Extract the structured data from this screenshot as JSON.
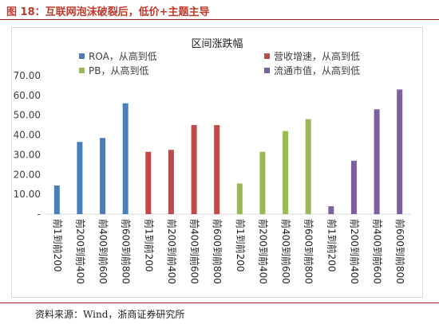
{
  "figure": {
    "title": "图 18：互联网泡沫破裂后，低价+主题主导",
    "source": "资料来源：Wind，浙商证券研究所"
  },
  "colors": {
    "title": "#c0392b",
    "rule": "#a61b1b",
    "roa": "#4a7ebb",
    "revenue": "#be4b48",
    "pb": "#98b954",
    "mktcap": "#7d5fa0",
    "axis": "#d9d9d9",
    "text": "#404040"
  },
  "chart_data": {
    "type": "bar",
    "title": "区间涨跌幅",
    "ylim": [
      0,
      70
    ],
    "yticks": [
      "-",
      "10.00",
      "20.00",
      "30.00",
      "40.00",
      "50.00",
      "60.00",
      "70.00"
    ],
    "grid": false,
    "legend_position": "top",
    "categories": [
      "前1到前200",
      "前200到前400",
      "前400到前600",
      "前600到前800",
      "前1到前200",
      "前200到前400",
      "前400到前600",
      "前600到前800",
      "前1到前200",
      "前200到前400",
      "前400到前600",
      "前600到前800",
      "前1到前200",
      "前200到前400",
      "前400到前600",
      "前600到前800"
    ],
    "series": [
      {
        "name": "ROA，从高到低",
        "color_key": "roa",
        "values": [
          14.5,
          36.5,
          38.5,
          56.0,
          null,
          null,
          null,
          null,
          null,
          null,
          null,
          null,
          null,
          null,
          null,
          null
        ]
      },
      {
        "name": "营收增速，从高到低",
        "color_key": "revenue",
        "values": [
          null,
          null,
          null,
          null,
          31.5,
          32.5,
          45.0,
          45.0,
          null,
          null,
          null,
          null,
          null,
          null,
          null,
          null
        ]
      },
      {
        "name": "PB，从高到低",
        "color_key": "pb",
        "values": [
          null,
          null,
          null,
          null,
          null,
          null,
          null,
          null,
          15.5,
          31.5,
          42.0,
          48.0,
          null,
          null,
          null,
          null
        ]
      },
      {
        "name": "流通市值，从高到低",
        "color_key": "mktcap",
        "values": [
          null,
          null,
          null,
          null,
          null,
          null,
          null,
          null,
          null,
          null,
          null,
          null,
          4.0,
          27.0,
          53.0,
          63.0
        ]
      }
    ]
  }
}
